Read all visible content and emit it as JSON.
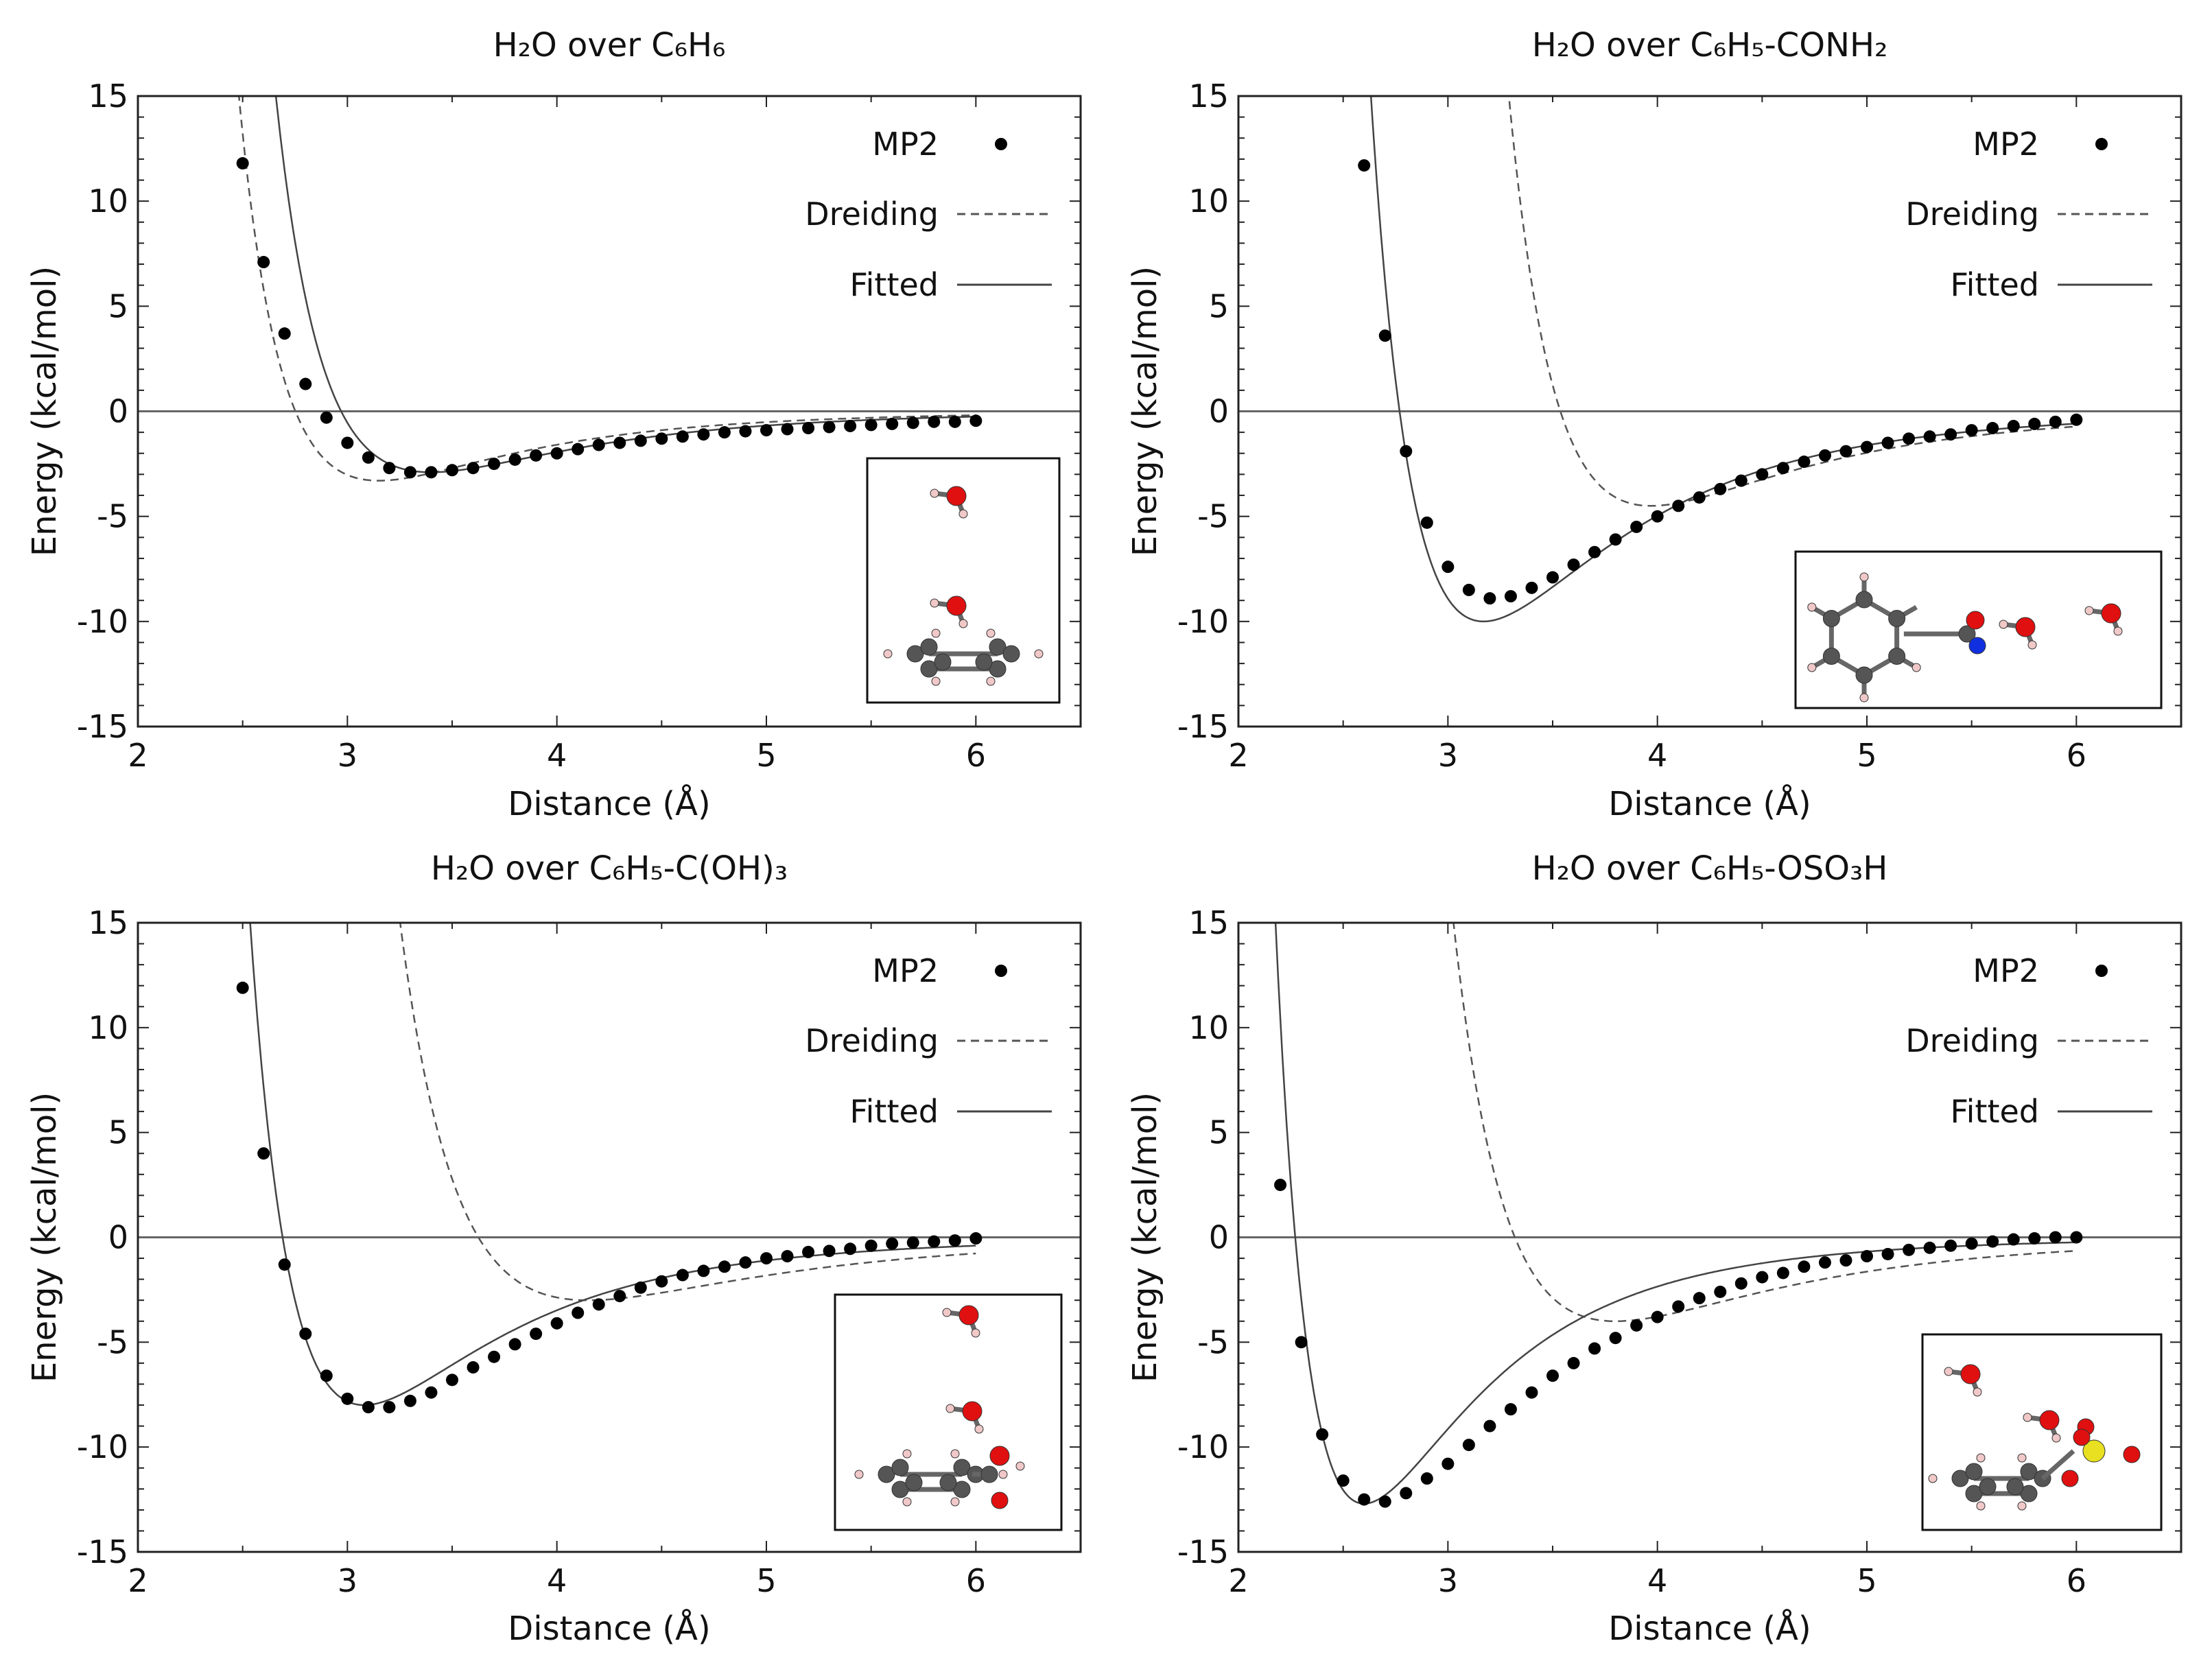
{
  "colors": {
    "mp2": "#000000",
    "dreiding": "#555555",
    "fitted": "#444444",
    "zero_line": "#666666",
    "oxygen": "#e01010",
    "hydrogen": "#f0c8c8",
    "carbon": "#555555",
    "nitrogen": "#1030e0",
    "sulfur": "#e8e020"
  },
  "legend": {
    "mp2": "MP2",
    "dreiding": "Dreiding",
    "fitted": "Fitted"
  },
  "chart_data": [
    {
      "type": "line",
      "title": "H₂O over C₆H₆",
      "xlabel": "Distance (Å)",
      "ylabel": "Energy (kcal/mol)",
      "xlim": [
        2,
        6.5
      ],
      "ylim": [
        -15,
        15
      ],
      "xticks": [
        "2",
        "3",
        "4",
        "5",
        "6"
      ],
      "yticks": [
        "15",
        "10",
        "5",
        "0",
        "-5",
        "-10",
        "-15"
      ],
      "legend_position": "top-right",
      "inset": "water dimer over benzene",
      "mp2": {
        "x_start": 2.5,
        "x_step": 0.1,
        "values": [
          11.8,
          7.1,
          3.7,
          1.3,
          -0.3,
          -1.5,
          -2.2,
          -2.7,
          -2.9,
          -2.9,
          -2.8,
          -2.7,
          -2.5,
          -2.3,
          -2.1,
          -2.0,
          -1.8,
          -1.6,
          -1.5,
          -1.4,
          -1.3,
          -1.2,
          -1.1,
          -1.0,
          -0.95,
          -0.9,
          -0.85,
          -0.8,
          -0.75,
          -0.7,
          -0.65,
          -0.6,
          -0.55,
          -0.5,
          -0.5,
          -0.45
        ]
      },
      "dreiding": {
        "D": 3.3,
        "re": 3.15,
        "n": 9,
        "m": 6
      },
      "fitted": {
        "D": 2.9,
        "re": 3.4,
        "n": 9,
        "m": 6
      }
    },
    {
      "type": "line",
      "title": "H₂O over C₆H₅-CONH₂",
      "xlabel": "Distance (Å)",
      "ylabel": "Energy (kcal/mol)",
      "xlim": [
        2,
        6.5
      ],
      "ylim": [
        -15,
        15
      ],
      "xticks": [
        "2",
        "3",
        "4",
        "5",
        "6"
      ],
      "yticks": [
        "15",
        "10",
        "5",
        "0",
        "-5",
        "-10",
        "-15"
      ],
      "legend_position": "top-right",
      "inset": "water near benzamide",
      "mp2": {
        "x_start": 2.6,
        "x_step": 0.1,
        "values": [
          11.7,
          3.6,
          -1.9,
          -5.3,
          -7.4,
          -8.5,
          -8.9,
          -8.8,
          -8.4,
          -7.9,
          -7.3,
          -6.7,
          -6.1,
          -5.5,
          -5.0,
          -4.5,
          -4.1,
          -3.7,
          -3.3,
          -3.0,
          -2.7,
          -2.4,
          -2.1,
          -1.9,
          -1.7,
          -1.5,
          -1.3,
          -1.2,
          -1.1,
          -0.9,
          -0.8,
          -0.7,
          -0.6,
          -0.5,
          -0.4
        ]
      },
      "dreiding": {
        "D": 4.5,
        "re": 3.97,
        "n": 12,
        "m": 6
      },
      "fitted": {
        "D": 10.0,
        "re": 3.17,
        "n": 9,
        "m": 6
      }
    },
    {
      "type": "line",
      "title": "H₂O over C₆H₅-C(OH)₃",
      "xlabel": "Distance (Å)",
      "ylabel": "Energy (kcal/mol)",
      "xlim": [
        2,
        6.5
      ],
      "ylim": [
        -15,
        15
      ],
      "xticks": [
        "2",
        "3",
        "4",
        "5",
        "6"
      ],
      "yticks": [
        "15",
        "10",
        "5",
        "0",
        "-5",
        "-10",
        "-15"
      ],
      "legend_position": "top-right",
      "inset": "water over phenyl-C(OH)3",
      "mp2": {
        "x_start": 2.5,
        "x_step": 0.1,
        "values": [
          11.9,
          4.0,
          -1.3,
          -4.6,
          -6.6,
          -7.7,
          -8.1,
          -8.1,
          -7.8,
          -7.4,
          -6.8,
          -6.2,
          -5.7,
          -5.1,
          -4.6,
          -4.1,
          -3.6,
          -3.2,
          -2.8,
          -2.4,
          -2.1,
          -1.8,
          -1.6,
          -1.4,
          -1.2,
          -1.0,
          -0.9,
          -0.7,
          -0.65,
          -0.55,
          -0.4,
          -0.3,
          -0.25,
          -0.2,
          -0.15,
          -0.05
        ]
      },
      "dreiding": {
        "D": 3.0,
        "re": 4.15,
        "n": 9,
        "m": 6
      },
      "fitted": {
        "D": 8.0,
        "re": 3.08,
        "n": 9,
        "m": 6
      }
    },
    {
      "type": "line",
      "title": "H₂O over C₆H₅-OSO₃H",
      "xlabel": "Distance (Å)",
      "ylabel": "Energy (kcal/mol)",
      "xlim": [
        2,
        6.5
      ],
      "ylim": [
        -15,
        15
      ],
      "xticks": [
        "2",
        "3",
        "4",
        "5",
        "6"
      ],
      "yticks": [
        "15",
        "10",
        "5",
        "0",
        "-5",
        "-10",
        "-15"
      ],
      "legend_position": "top-right",
      "inset": "water near phenyl sulfate",
      "mp2": {
        "x_start": 2.2,
        "x_step": 0.1,
        "values": [
          2.5,
          -5.0,
          -9.4,
          -11.6,
          -12.5,
          -12.6,
          -12.2,
          -11.5,
          -10.8,
          -9.9,
          -9.0,
          -8.2,
          -7.4,
          -6.6,
          -6.0,
          -5.3,
          -4.8,
          -4.2,
          -3.8,
          -3.3,
          -2.9,
          -2.6,
          -2.2,
          -1.9,
          -1.7,
          -1.4,
          -1.2,
          -1.1,
          -0.9,
          -0.8,
          -0.6,
          -0.5,
          -0.4,
          -0.3,
          -0.2,
          -0.1,
          -0.05,
          0.0,
          0.0
        ]
      },
      "dreiding": {
        "D": 4.0,
        "re": 3.8,
        "n": 9,
        "m": 6
      },
      "fitted": {
        "D": 12.7,
        "re": 2.6,
        "n": 9,
        "m": 6
      }
    }
  ]
}
